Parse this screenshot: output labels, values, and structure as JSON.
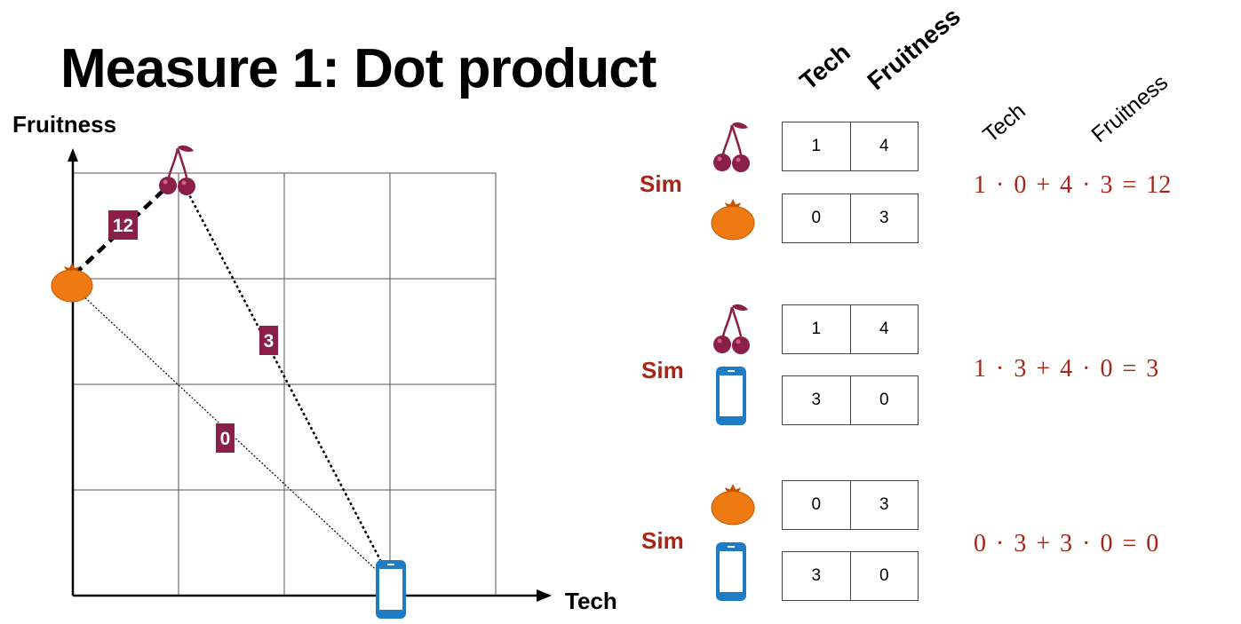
{
  "title": "Measure 1: Dot product",
  "plot": {
    "x_axis_label": "Tech",
    "y_axis_label": "Fruitness",
    "badges": {
      "cherry_tomato": "12",
      "cherry_phone": "3",
      "tomato_phone": "0"
    }
  },
  "table_headers": {
    "col1": "Tech",
    "col2": "Fruitness"
  },
  "formula_headers": {
    "col1": "Tech",
    "col2": "Fruitness"
  },
  "comparisons": [
    {
      "sim_label": "Sim",
      "top": [
        "1",
        "4"
      ],
      "bottom": [
        "0",
        "3"
      ],
      "formula": "1 · 0  +  4 · 3  = 12"
    },
    {
      "sim_label": "Sim",
      "top": [
        "1",
        "4"
      ],
      "bottom": [
        "3",
        "0"
      ],
      "formula": "1 · 3  +  4 · 0  = 3"
    },
    {
      "sim_label": "Sim",
      "top": [
        "0",
        "3"
      ],
      "bottom": [
        "3",
        "0"
      ],
      "formula": "0 · 3  +  3 · 0  = 0"
    }
  ],
  "colors": {
    "accent_red": "#a82416",
    "badge": "#8a1f48",
    "cherry": "#8a1f48",
    "tomato": "#f07a12",
    "phone": "#1f7cc4"
  },
  "icons": [
    "cherry-icon",
    "tomato-icon",
    "phone-icon"
  ]
}
